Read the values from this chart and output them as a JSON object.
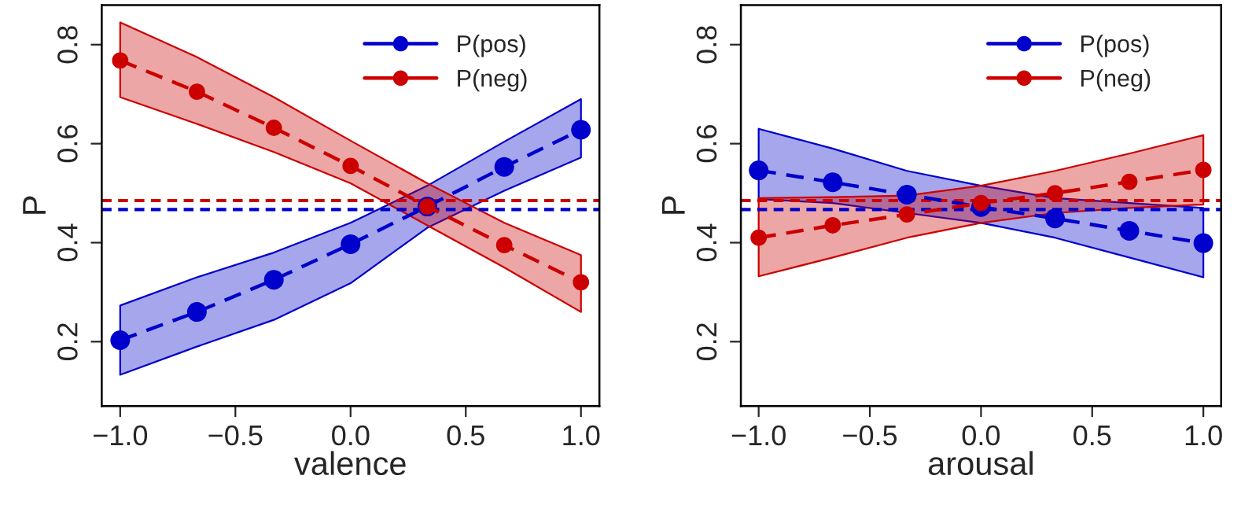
{
  "chart_data": [
    {
      "type": "line",
      "xlabel": "valence",
      "ylabel": "P",
      "x": [
        -1,
        -0.667,
        -0.333,
        0,
        0.333,
        0.667,
        1
      ],
      "series": [
        {
          "name": "P(pos)",
          "color": "#0000cc",
          "values": [
            0.203,
            0.26,
            0.325,
            0.397,
            0.473,
            0.553,
            0.628
          ],
          "lower": [
            0.133,
            0.19,
            0.244,
            0.318,
            0.43,
            0.505,
            0.572
          ],
          "upper": [
            0.273,
            0.33,
            0.38,
            0.44,
            0.515,
            0.604,
            0.69
          ]
        },
        {
          "name": "P(neg)",
          "color": "#cc0000",
          "values": [
            0.768,
            0.705,
            0.632,
            0.555,
            0.473,
            0.395,
            0.32
          ],
          "lower": [
            0.694,
            0.64,
            0.583,
            0.52,
            0.435,
            0.35,
            0.26
          ],
          "upper": [
            0.845,
            0.775,
            0.694,
            0.606,
            0.52,
            0.44,
            0.375
          ]
        }
      ],
      "ref_lines": [
        {
          "axis": "y",
          "value": 0.485,
          "color": "#cc0000",
          "line_style": "dashed"
        },
        {
          "axis": "y",
          "value": 0.467,
          "color": "#0000cc",
          "line_style": "dashed"
        }
      ],
      "xlim": [
        -1.08,
        1.08
      ],
      "ylim": [
        0.07,
        0.88
      ],
      "xticks": [
        {
          "value": -1,
          "label": "−1.0"
        },
        {
          "value": -0.5,
          "label": "−0.5"
        },
        {
          "value": 0,
          "label": "0.0"
        },
        0.5,
        {
          "value": 1,
          "label": "1.0"
        }
      ],
      "yticks": [
        0.2,
        0.4,
        0.6,
        0.8
      ],
      "marker": "circle",
      "line_style": "dashed",
      "legend": "top right",
      "grid": false
    },
    {
      "type": "line",
      "xlabel": "arousal",
      "ylabel": "P",
      "x": [
        -1,
        -0.667,
        -0.333,
        0,
        0.333,
        0.667,
        1
      ],
      "series": [
        {
          "name": "P(pos)",
          "color": "#0000cc",
          "values": [
            0.546,
            0.522,
            0.497,
            0.472,
            0.449,
            0.424,
            0.399
          ],
          "lower": [
            0.488,
            0.48,
            0.46,
            0.44,
            0.41,
            0.37,
            0.33
          ],
          "upper": [
            0.63,
            0.59,
            0.545,
            0.515,
            0.49,
            0.48,
            0.47
          ]
        },
        {
          "name": "P(neg)",
          "color": "#cc0000",
          "values": [
            0.41,
            0.435,
            0.457,
            0.48,
            0.5,
            0.523,
            0.547
          ],
          "lower": [
            0.332,
            0.37,
            0.41,
            0.44,
            0.46,
            0.47,
            0.477
          ],
          "upper": [
            0.49,
            0.492,
            0.495,
            0.515,
            0.545,
            0.58,
            0.617
          ]
        }
      ],
      "ref_lines": [
        {
          "axis": "y",
          "value": 0.485,
          "color": "#cc0000",
          "line_style": "dashed"
        },
        {
          "axis": "y",
          "value": 0.467,
          "color": "#0000cc",
          "line_style": "dashed"
        }
      ],
      "xlim": [
        -1.08,
        1.08
      ],
      "ylim": [
        0.07,
        0.88
      ],
      "xticks": [
        {
          "value": -1,
          "label": "−1.0"
        },
        {
          "value": -0.5,
          "label": "−0.5"
        },
        {
          "value": 0,
          "label": "0.0"
        },
        0.5,
        {
          "value": 1,
          "label": "1.0"
        }
      ],
      "yticks": [
        0.2,
        0.4,
        0.6,
        0.8
      ],
      "marker": "circle",
      "line_style": "dashed",
      "legend": "top right",
      "grid": false
    }
  ]
}
